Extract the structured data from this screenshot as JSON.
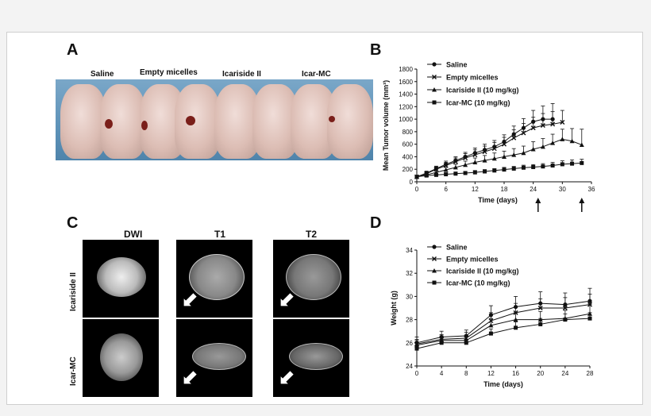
{
  "panels": {
    "A": "A",
    "B": "B",
    "C": "C",
    "D": "D"
  },
  "panelA": {
    "groups": [
      "Saline",
      "Empty micelles",
      "Icariside II",
      "Icar-MC"
    ]
  },
  "panelC": {
    "columns": [
      "DWI",
      "T1",
      "T2"
    ],
    "rows": [
      "Icariside II",
      "Icar-MC"
    ]
  },
  "chart_data": [
    {
      "id": "B",
      "type": "line",
      "ylabel": "Mean Tumor volume (mm³)",
      "xlabel": "Time (days)",
      "xlim": [
        0,
        36
      ],
      "ylim": [
        0,
        1800
      ],
      "xticks": [
        0,
        6,
        12,
        18,
        24,
        30,
        36
      ],
      "yticks": [
        0,
        200,
        400,
        600,
        800,
        1000,
        1200,
        1400,
        1600,
        1800
      ],
      "annotations": [
        {
          "type": "arrow",
          "x": 25
        },
        {
          "type": "arrow",
          "x": 34
        }
      ],
      "x": [
        0,
        2,
        4,
        6,
        8,
        10,
        12,
        14,
        16,
        18,
        20,
        22,
        24,
        26,
        28,
        30,
        32,
        34
      ],
      "series": [
        {
          "name": "Saline",
          "marker": "circle",
          "x": [
            0,
            2,
            4,
            6,
            8,
            10,
            12,
            14,
            16,
            18,
            20,
            22,
            24,
            26,
            28
          ],
          "values": [
            80,
            140,
            210,
            280,
            340,
            400,
            460,
            510,
            560,
            640,
            760,
            860,
            960,
            1000,
            1000
          ],
          "errors": [
            20,
            30,
            40,
            50,
            60,
            70,
            80,
            90,
            100,
            110,
            130,
            150,
            180,
            210,
            250
          ]
        },
        {
          "name": "Empty micelles",
          "marker": "x",
          "x": [
            0,
            2,
            4,
            6,
            8,
            10,
            12,
            14,
            16,
            18,
            20,
            22,
            24,
            26,
            28,
            30
          ],
          "values": [
            80,
            130,
            200,
            260,
            320,
            380,
            430,
            480,
            530,
            600,
            700,
            780,
            860,
            900,
            920,
            950
          ],
          "errors": [
            20,
            30,
            40,
            50,
            60,
            70,
            80,
            90,
            100,
            110,
            130,
            150,
            170,
            190,
            200,
            190
          ]
        },
        {
          "name": "Icariside II (10 mg/kg)",
          "marker": "triangle",
          "x": [
            0,
            2,
            4,
            6,
            8,
            10,
            12,
            14,
            16,
            18,
            20,
            22,
            24,
            26,
            28,
            30,
            32,
            34
          ],
          "values": [
            80,
            110,
            150,
            190,
            230,
            270,
            310,
            340,
            370,
            400,
            430,
            460,
            520,
            560,
            620,
            680,
            650,
            590
          ],
          "errors": [
            15,
            20,
            30,
            40,
            50,
            60,
            70,
            80,
            90,
            90,
            100,
            110,
            120,
            130,
            140,
            160,
            200,
            250
          ]
        },
        {
          "name": "Icar-MC (10 mg/kg)",
          "marker": "square",
          "x": [
            0,
            2,
            4,
            6,
            8,
            10,
            12,
            14,
            16,
            18,
            20,
            22,
            24,
            26,
            28,
            30,
            32,
            34
          ],
          "values": [
            80,
            100,
            110,
            120,
            130,
            140,
            150,
            165,
            180,
            195,
            210,
            225,
            235,
            245,
            260,
            280,
            290,
            300
          ],
          "errors": [
            10,
            15,
            20,
            20,
            25,
            25,
            30,
            30,
            30,
            35,
            35,
            40,
            40,
            45,
            50,
            55,
            60,
            60
          ]
        }
      ]
    },
    {
      "id": "D",
      "type": "line",
      "ylabel": "Weight (g)",
      "xlabel": "Time (days)",
      "xlim": [
        0,
        28
      ],
      "ylim": [
        24,
        34
      ],
      "xticks": [
        0,
        4,
        8,
        12,
        16,
        20,
        24,
        28
      ],
      "yticks": [
        24,
        26,
        28,
        30,
        32,
        34
      ],
      "x": [
        0,
        4,
        8,
        12,
        16,
        20,
        24,
        28
      ],
      "series": [
        {
          "name": "Saline",
          "marker": "circle",
          "values": [
            26.0,
            26.5,
            26.6,
            28.4,
            29.1,
            29.4,
            29.3,
            29.6
          ],
          "errors": [
            0.5,
            0.5,
            0.5,
            0.8,
            0.9,
            1.0,
            1.0,
            1.1
          ]
        },
        {
          "name": "Empty micelles",
          "marker": "x",
          "values": [
            25.9,
            26.3,
            26.4,
            27.9,
            28.6,
            29.0,
            29.0,
            29.3
          ],
          "errors": [
            0.4,
            0.4,
            0.5,
            0.7,
            0.8,
            0.8,
            0.9,
            0.9
          ]
        },
        {
          "name": "Icariside II (10 mg/kg)",
          "marker": "triangle",
          "values": [
            25.8,
            26.2,
            26.2,
            27.5,
            28.0,
            28.0,
            28.1,
            28.5
          ],
          "errors": [
            0.4,
            0.4,
            0.4,
            0.6,
            0.6,
            0.7,
            0.7,
            0.8
          ]
        },
        {
          "name": "Icar-MC (10 mg/kg)",
          "marker": "square",
          "values": [
            25.5,
            26.0,
            26.0,
            26.8,
            27.3,
            27.6,
            28.0,
            28.1
          ],
          "errors": [
            0.3,
            0.3,
            0.3,
            0.4,
            0.5,
            0.5,
            0.5,
            0.5
          ]
        }
      ]
    }
  ]
}
